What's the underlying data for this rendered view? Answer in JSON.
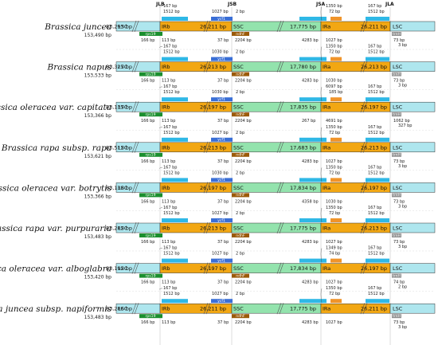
{
  "junctions": [
    "JLB",
    "JSB",
    "JSA",
    "JLA"
  ],
  "colors": {
    "LSC": "#aee6ee",
    "IR": "#f2a713",
    "SSC": "#93e3ad",
    "rps19": "#1a8f2e",
    "rpl2": "#2fb8e6",
    "ycf1": "#3a6fd6",
    "ndhF": "#9b5a08",
    "trnH": "#8f8f8f",
    "ycf1_frag": "#f0942a",
    "trnN": "#2fb8e6"
  },
  "tracks": [
    {
      "species": "Brassica juncea",
      "total": "153,490 bp",
      "lsc": "83,293 bp",
      "irb": "26,211 bp",
      "ssc": "17,775 bp",
      "ira": "26,211 bp",
      "jlb_top1": "167 bp",
      "jlb_top2": "1512 bp",
      "jlb_b1": "166 bp",
      "jlb_b2": "113 bp",
      "jsb_top1": "1027 bp",
      "jsb_top2": "2 bp",
      "jsb_b1": "37 bp",
      "jsb_b2": "2204 bp",
      "jsa_top1": "1350 bp",
      "jsa_top2": "72 bp",
      "jsa_b1": "4283 bp",
      "jsa_b2": "1027 bp",
      "jla_top1": "167 bp",
      "jla_top2": "1512 bp",
      "jla_b1": "73 bp",
      "jla_b2": "3 bp"
    },
    {
      "species": "Brassica napus",
      "total": "153,533 bp",
      "lsc": "83,327 bp",
      "irb": "26,213 bp",
      "ssc": "17,780 bp",
      "ira": "26,213 bp",
      "jlb_top1": "167 bp",
      "jlb_top2": "1512 bp",
      "jlb_b1": "166 bp",
      "jlb_b2": "113 bp",
      "jsb_top1": "1030 bp",
      "jsb_top2": "2 bp",
      "jsb_b1": "37 bp",
      "jsb_b2": "2204 bp",
      "jsa_top1": "1350 bp",
      "jsa_top2": "72 bp",
      "jsa_b1": "4283 bp",
      "jsa_b2": "1030 bp",
      "jla_top1": "167 bp",
      "jla_top2": "1512 bp",
      "jla_b1": "73 bp",
      "jla_b2": "3 bp"
    },
    {
      "species": "Brassica oleracea var. capitata",
      "total": "153,366 bp",
      "lsc": "83,137 bp",
      "irb": "26,197 bp",
      "ssc": "17,835 bp",
      "ira": "26,197 bp",
      "jlb_top1": "167 bp",
      "jlb_top2": "1512 bp",
      "jlb_b1": "166 bp",
      "jlb_b2": "113 bp",
      "jsb_top1": "1030 bp",
      "jsb_top2": "2 bp",
      "jsb_b1": "37 bp",
      "jsb_b2": "2204 bp",
      "jsa_top1": "6097 bp",
      "jsa_top2": "185 bp",
      "jsa_b1": "267 bp",
      "jsa_b2": "4691 bp",
      "jla_top1": "167 bp",
      "jla_top2": "1512 bp",
      "jla_b1": "1062 bp",
      "jla_b2": "327 bp"
    },
    {
      "species": "Brassica rapa subsp. rapa",
      "total": "153,621 bp",
      "lsc": "83,512 bp",
      "irb": "26,213 bp",
      "ssc": "17,683 bp",
      "ira": "26,213 bp",
      "jlb_top1": "167 bp",
      "jlb_top2": "1512 bp",
      "jlb_b1": "166 bp",
      "jlb_b2": "113 bp",
      "jsb_top1": "1027 bp",
      "jsb_top2": "2 bp",
      "jsb_b1": "37 bp",
      "jsb_b2": "2204 bp",
      "jsa_top1": "1350 bp",
      "jsa_top2": "72 bp",
      "jsa_b1": "4283 bp",
      "jsa_b2": "1027 bp",
      "jla_top1": "167 bp",
      "jla_top2": "1512 bp",
      "jla_b1": "73 bp",
      "jla_b2": "3 bp"
    },
    {
      "species": "Brassica oleracea var. botrytis",
      "total": "153,366 bp",
      "lsc": "83,138 bp",
      "irb": "26,197 bp",
      "ssc": "17,834 bp",
      "ira": "26,197 bp",
      "jlb_top1": "167 bp",
      "jlb_top2": "1512 bp",
      "jlb_b1": "166 bp",
      "jlb_b2": "113 bp",
      "jsb_top1": "1030 bp",
      "jsb_top2": "2 bp",
      "jsb_b1": "37 bp",
      "jsb_b2": "2204 bp",
      "jsa_top1": "1350 bp",
      "jsa_top2": "72 bp",
      "jsa_b1": "4358 bp",
      "jsa_b2": "1030 bp",
      "jla_top1": "167 bp",
      "jla_top2": "1512 bp",
      "jla_b1": "73 bp",
      "jla_b2": "3 bp"
    },
    {
      "species": "Brassica rapa var. purpuraria",
      "total": "153,483 bp",
      "lsc": "83,282 bp",
      "irb": "26,213 bp",
      "ssc": "17,775 bp",
      "ira": "26,213 bp",
      "jlb_top1": "167 bp",
      "jlb_top2": "1512 bp",
      "jlb_b1": "166 bp",
      "jlb_b2": "113 bp",
      "jsb_top1": "1027 bp",
      "jsb_top2": "2 bp",
      "jsb_b1": "37 bp",
      "jsb_b2": "2204 bp",
      "jsa_top1": "1350 bp",
      "jsa_top2": "72 bp",
      "jsa_b1": "4283 bp",
      "jsa_b2": "1027 bp",
      "jla_top1": "167 bp",
      "jla_top2": "1512 bp",
      "jla_b1": "73 bp",
      "jla_b2": "3 bp"
    },
    {
      "species": "Brassica oleracea var. alboglabra",
      "total": "153,420 bp",
      "lsc": "83,192 bp",
      "irb": "26,197 bp",
      "ssc": "17,834 bp",
      "ira": "26,197 bp",
      "jlb_top1": "167 bp",
      "jlb_top2": "1512 bp",
      "jlb_b1": "166 bp",
      "jlb_b2": "113 bp",
      "jsb_top1": "1027 bp",
      "jsb_top2": "2 bp",
      "jsb_b1": "37 bp",
      "jsb_b2": "2204 bp",
      "jsa_top1": "1349 bp",
      "jsa_top2": "74 bp",
      "jsa_b1": "4283 bp",
      "jsa_b2": "1027 bp",
      "jla_top1": "167 bp",
      "jla_top2": "1512 bp",
      "jla_b1": "74 bp",
      "jla_b2": "2 bp"
    },
    {
      "species": "Brassica juncea subsp. napiformis",
      "total": "153,483 bp",
      "lsc": "83,286 bp",
      "irb": "26,211 bp",
      "ssc": "17,775 bp",
      "ira": "26,211 bp",
      "jlb_top1": "167 bp",
      "jlb_top2": "1512 bp",
      "jlb_b1": "166 bp",
      "jlb_b2": "113 bp",
      "jsb_top1": "1027 bp",
      "jsb_top2": "2 bp",
      "jsb_b1": "37 bp",
      "jsb_b2": "2204 bp",
      "jsa_top1": "1350 bp",
      "jsa_top2": "72 bp",
      "jsa_b1": "4283 bp",
      "jsa_b2": "1027 bp",
      "jla_top1": "167 bp",
      "jla_top2": "1512 bp",
      "jla_b1": "73 bp",
      "jla_b2": "3 bp"
    }
  ],
  "labels": {
    "lsc": "LSC",
    "irb": "IRb",
    "ssc": "SSC",
    "ira": "IRa",
    "rps19": "rps19",
    "rpl2": "rpl2",
    "ycf1": "ycf1",
    "ndhF": "ndhF",
    "trnH": "trnH",
    "trnN": "trnN"
  }
}
